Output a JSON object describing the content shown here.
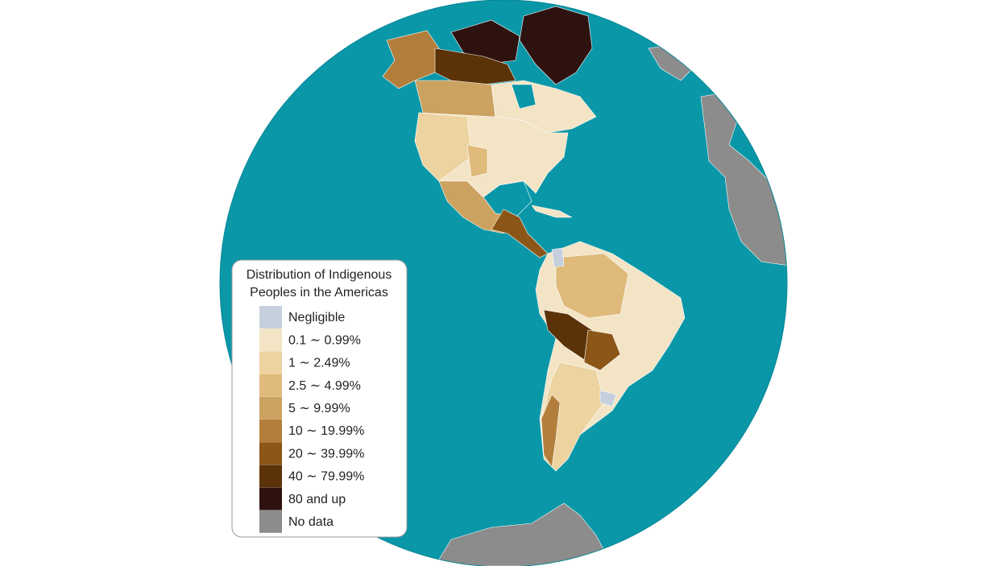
{
  "legend": {
    "title": [
      "Distribution of Indigenous",
      "Peoples in the Americas"
    ],
    "items": [
      {
        "label": "Negligible",
        "color": "#c5cfdd"
      },
      {
        "label": "0.1 ∼ 0.99%",
        "color": "#f3e4c6"
      },
      {
        "label": "1 ∼ 2.49%",
        "color": "#ecd3a0"
      },
      {
        "label": "2.5 ∼ 4.99%",
        "color": "#dfba7a"
      },
      {
        "label": "5 ∼ 9.99%",
        "color": "#cca260"
      },
      {
        "label": "10 ∼ 19.99%",
        "color": "#b37e3c"
      },
      {
        "label": "20 ∼ 39.99%",
        "color": "#8b5618"
      },
      {
        "label": "40 ∼ 79.99%",
        "color": "#5c3309"
      },
      {
        "label": "80 and up",
        "color": "#2e1210"
      },
      {
        "label": "No data",
        "color": "#8c8c8c"
      }
    ]
  }
}
